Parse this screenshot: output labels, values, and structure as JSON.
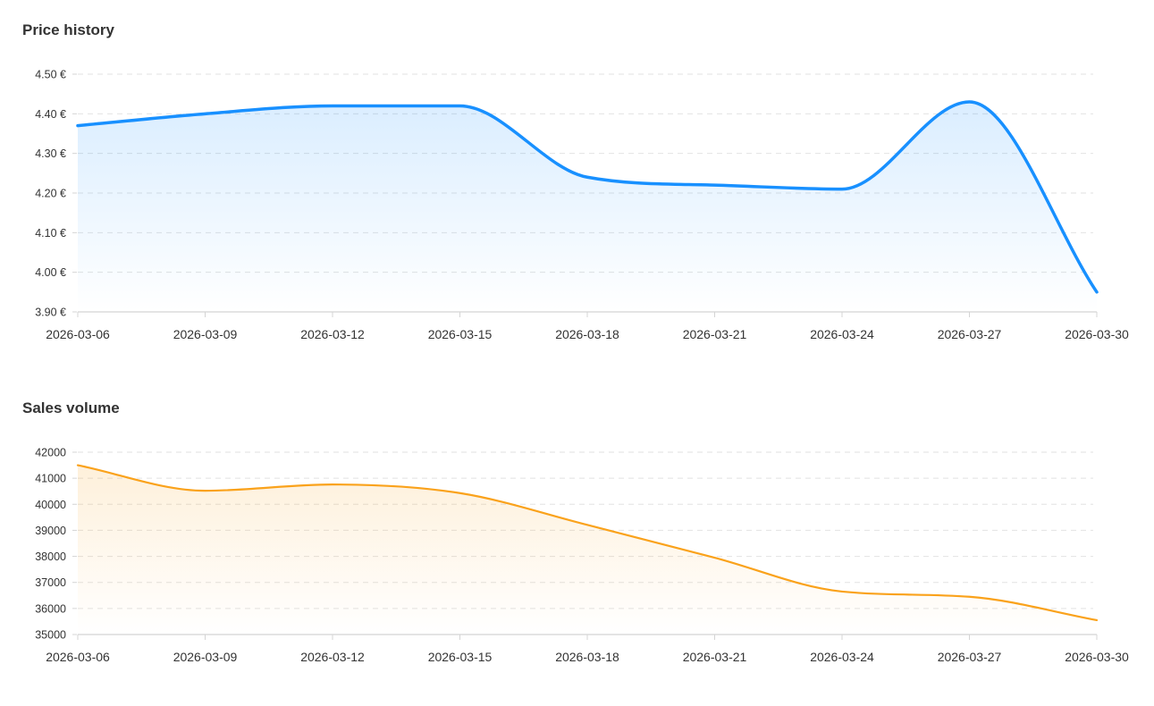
{
  "chart_data": [
    {
      "type": "area",
      "title": "Price history",
      "xlabel": "",
      "ylabel": "",
      "y_ticks": [
        "3.90 €",
        "4.00 €",
        "4.10 €",
        "4.20 €",
        "4.30 €",
        "4.40 €",
        "4.50 €"
      ],
      "x_ticks": [
        "2026-03-06",
        "2026-03-09",
        "2026-03-12",
        "2026-03-15",
        "2026-03-18",
        "2026-03-21",
        "2026-03-24",
        "2026-03-27",
        "2026-03-30"
      ],
      "x": [
        "2026-03-06",
        "2026-03-09",
        "2026-03-12",
        "2026-03-15",
        "2026-03-18",
        "2026-03-21",
        "2026-03-24",
        "2026-03-27",
        "2026-03-30"
      ],
      "values": [
        4.37,
        4.4,
        4.42,
        4.42,
        4.24,
        4.22,
        4.21,
        4.43,
        3.95
      ],
      "ylim": [
        3.9,
        4.5
      ],
      "grid": true,
      "color": "#1890ff"
    },
    {
      "type": "area",
      "title": "Sales volume",
      "xlabel": "",
      "ylabel": "",
      "y_ticks": [
        "35000",
        "36000",
        "37000",
        "38000",
        "39000",
        "40000",
        "41000",
        "42000"
      ],
      "x_ticks": [
        "2026-03-06",
        "2026-03-09",
        "2026-03-12",
        "2026-03-15",
        "2026-03-18",
        "2026-03-21",
        "2026-03-24",
        "2026-03-27",
        "2026-03-30"
      ],
      "x": [
        "2026-03-06",
        "2026-03-09",
        "2026-03-12",
        "2026-03-15",
        "2026-03-18",
        "2026-03-21",
        "2026-03-24",
        "2026-03-27",
        "2026-03-30"
      ],
      "values": [
        41500,
        40520,
        40760,
        40430,
        39210,
        37950,
        36650,
        36450,
        35550
      ],
      "ylim": [
        35000,
        42000
      ],
      "grid": true,
      "color": "#faa21b"
    }
  ]
}
